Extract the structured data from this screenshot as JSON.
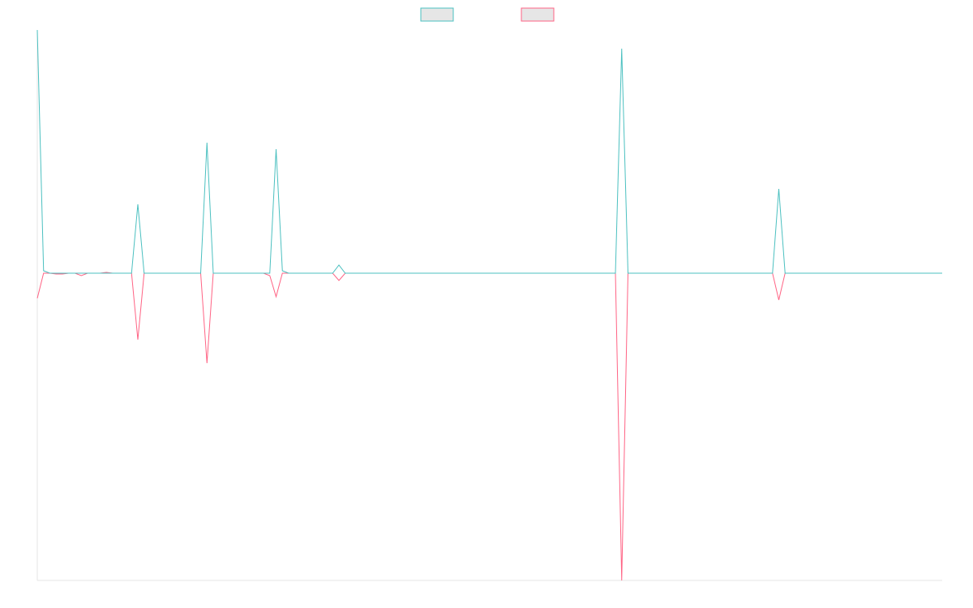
{
  "chart_data": {
    "type": "line",
    "ylim": [
      -379,
      300
    ],
    "legend": "top",
    "grid": false,
    "series": [
      {
        "color": "#4bc0c0",
        "values": [
          300,
          3,
          0,
          0,
          0,
          0,
          0,
          0,
          0,
          0,
          0,
          0,
          0,
          0,
          0,
          0,
          85,
          0,
          0,
          0,
          0,
          0,
          0,
          0,
          0,
          0,
          0,
          161,
          0,
          0,
          0,
          0,
          0,
          0,
          0,
          0,
          0,
          0,
          153,
          3,
          0,
          0,
          0,
          0,
          0,
          0,
          0,
          0,
          10,
          0,
          0,
          0,
          0,
          0,
          0,
          0,
          0,
          0,
          0,
          0,
          0,
          0,
          0,
          0,
          0,
          0,
          0,
          0,
          0,
          0,
          0,
          0,
          0,
          0,
          0,
          0,
          0,
          0,
          0,
          0,
          0,
          0,
          0,
          0,
          0,
          0,
          0,
          0,
          0,
          0,
          0,
          0,
          0,
          277,
          0,
          0,
          0,
          0,
          0,
          0,
          0,
          0,
          0,
          0,
          0,
          0,
          0,
          0,
          0,
          0,
          0,
          0,
          0,
          0,
          0,
          0,
          0,
          0,
          104,
          0,
          0,
          0,
          0,
          0,
          0,
          0,
          0,
          0,
          0,
          0,
          0,
          0,
          0,
          0,
          0,
          0,
          0,
          0,
          0,
          0,
          0,
          0,
          0,
          0,
          0
        ]
      },
      {
        "color": "#ff6384",
        "values": [
          -31,
          0,
          0,
          -1,
          -1,
          0,
          0,
          -3,
          0,
          0,
          0,
          1,
          0,
          0,
          0,
          0,
          -82,
          0,
          0,
          0,
          0,
          0,
          0,
          0,
          0,
          0,
          0,
          -111,
          0,
          0,
          0,
          0,
          0,
          0,
          0,
          0,
          0,
          -3,
          -29,
          0,
          0,
          0,
          0,
          0,
          0,
          0,
          0,
          0,
          -9,
          0,
          0,
          0,
          0,
          0,
          0,
          0,
          0,
          0,
          0,
          0,
          0,
          0,
          0,
          0,
          0,
          0,
          0,
          0,
          0,
          0,
          0,
          0,
          0,
          0,
          0,
          0,
          0,
          0,
          0,
          0,
          0,
          0,
          0,
          0,
          0,
          0,
          0,
          0,
          0,
          0,
          0,
          0,
          0,
          -379,
          0,
          0,
          0,
          0,
          0,
          0,
          0,
          0,
          0,
          0,
          0,
          0,
          0,
          0,
          0,
          0,
          0,
          0,
          0,
          0,
          0,
          0,
          0,
          0,
          -33,
          0,
          0,
          0,
          0,
          0,
          0,
          0,
          0,
          0,
          0,
          0,
          0,
          0,
          0,
          0,
          0,
          0,
          0,
          0,
          0,
          0,
          0,
          0,
          0,
          0,
          0
        ]
      }
    ]
  }
}
